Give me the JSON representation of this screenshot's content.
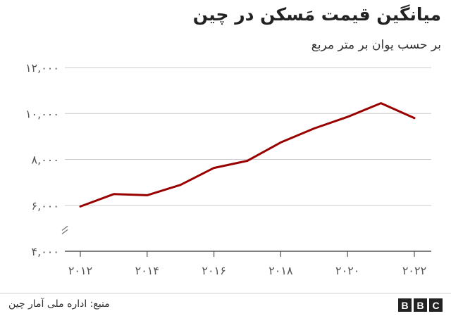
{
  "chart_data": {
    "type": "line",
    "title": "میانگین قیمت مَسکن در چین",
    "subtitle": "بر حسب یوان بر متر مربع",
    "xlabel": "",
    "ylabel": "",
    "x": [
      2012,
      2013,
      2014,
      2015,
      2016,
      2017,
      2018,
      2019,
      2020,
      2021,
      2022
    ],
    "series": [
      {
        "values": [
          5950,
          6490,
          6440,
          6890,
          7630,
          7940,
          8740,
          9350,
          9850,
          10450,
          9800
        ]
      }
    ],
    "xticks": [
      2012,
      2014,
      2016,
      2018,
      2020,
      2022
    ],
    "xtick_labels": [
      "۲۰۱۲",
      "۲۰۱۴",
      "۲۰۱۶",
      "۲۰۱۸",
      "۲۰۲۰",
      "۲۰۲۲"
    ],
    "yticks": [
      4000,
      6000,
      8000,
      10000,
      12000
    ],
    "ytick_labels": [
      "۴,۰۰۰",
      "۶,۰۰۰",
      "۸,۰۰۰",
      "۱۰,۰۰۰",
      "۱۲,۰۰۰"
    ],
    "ylim": [
      4000,
      12000
    ],
    "xlim": [
      2012,
      2022
    ],
    "axis_break": true,
    "grid": true,
    "line_color": "#990000"
  },
  "footer": {
    "source": "منبع: اداره ملی آمار چین",
    "logo_letters": [
      "B",
      "B",
      "C"
    ]
  }
}
